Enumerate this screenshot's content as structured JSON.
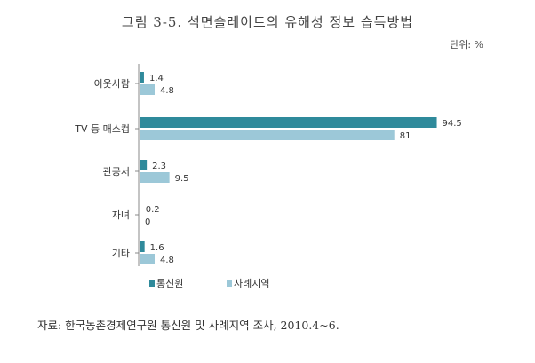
{
  "title": "그림 3-5.  석면슬레이트의 유해성 정보 습득방법",
  "unit": "단위: %",
  "source": "자료: 한국농촌경제연구원 통신원 및 사례지역 조사, 2010.4~6.",
  "colors": {
    "series1": "#2f8a9b",
    "series2": "#9cc8d8"
  },
  "chart_data": {
    "type": "bar",
    "orientation": "horizontal",
    "categories": [
      "이웃사람",
      "TV 등 매스컴",
      "관공서",
      "자녀",
      "기타"
    ],
    "series": [
      {
        "name": "통신원",
        "values": [
          1.4,
          94.5,
          2.3,
          0.2,
          1.6
        ],
        "labels": [
          "1.4",
          "94.5",
          "2.3",
          "0.2",
          "1.6"
        ]
      },
      {
        "name": "사례지역",
        "values": [
          4.8,
          81,
          9.5,
          0,
          4.8
        ],
        "labels": [
          "4.8",
          "81",
          "9.5",
          "0",
          "4.8"
        ]
      }
    ],
    "xlim": [
      0,
      100
    ],
    "grid": false,
    "legend_position": "bottom"
  }
}
